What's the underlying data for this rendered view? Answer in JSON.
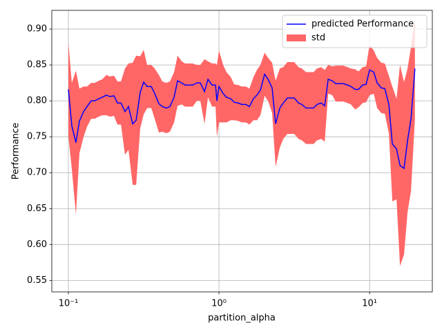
{
  "chart_data": {
    "type": "line_band",
    "xlabel": "partition_alpha",
    "ylabel": "Performance",
    "xscale": "log",
    "grid": true,
    "legend": "upper right",
    "x": [
      0.1,
      0.1054,
      0.1122,
      0.1184,
      0.1262,
      0.133,
      0.1416,
      0.1493,
      0.1592,
      0.1679,
      0.1787,
      0.1884,
      0.2009,
      0.2118,
      0.2234,
      0.2377,
      0.2506,
      0.2673,
      0.2818,
      0.2999,
      0.3162,
      0.3334,
      0.3551,
      0.3743,
      0.399,
      0.4207,
      0.4479,
      0.4722,
      0.5035,
      0.5309,
      0.5652,
      0.5957,
      0.6353,
      0.6699,
      0.7129,
      0.7516,
      0.8017,
      0.845,
      0.8995,
      0.9484,
      0.9688,
      1.0,
      1.066,
      1.122,
      1.197,
      1.262,
      1.343,
      1.416,
      1.51,
      1.592,
      1.694,
      1.787,
      1.884,
      2.009,
      2.118,
      2.254,
      2.377,
      2.535,
      2.673,
      2.844,
      2.999,
      3.162,
      3.371,
      3.548,
      3.784,
      3.99,
      4.246,
      4.477,
      4.775,
      5.035,
      5.309,
      5.649,
      5.957,
      6.353,
      6.699,
      7.129,
      7.516,
      8.017,
      8.45,
      8.995,
      9.484,
      10,
      10.66,
      11.22,
      11.97,
      12.62,
      13.43,
      14.16,
      15.1,
      15.92,
      16.94,
      17.87,
      18.84,
      20
    ],
    "series": [
      {
        "name": "predicted Performance",
        "color": "#0000ff",
        "values": [
          0.816,
          0.765,
          0.742,
          0.772,
          0.785,
          0.792,
          0.8,
          0.8,
          0.803,
          0.805,
          0.808,
          0.806,
          0.807,
          0.797,
          0.797,
          0.785,
          0.792,
          0.768,
          0.773,
          0.812,
          0.826,
          0.82,
          0.82,
          0.81,
          0.796,
          0.792,
          0.79,
          0.792,
          0.805,
          0.828,
          0.825,
          0.822,
          0.822,
          0.822,
          0.825,
          0.825,
          0.813,
          0.83,
          0.822,
          0.822,
          0.8,
          0.82,
          0.81,
          0.805,
          0.803,
          0.798,
          0.797,
          0.795,
          0.795,
          0.792,
          0.803,
          0.808,
          0.815,
          0.837,
          0.83,
          0.818,
          0.768,
          0.79,
          0.797,
          0.804,
          0.804,
          0.804,
          0.797,
          0.795,
          0.79,
          0.79,
          0.79,
          0.795,
          0.797,
          0.793,
          0.83,
          0.828,
          0.824,
          0.824,
          0.824,
          0.822,
          0.82,
          0.816,
          0.816,
          0.822,
          0.823,
          0.843,
          0.84,
          0.825,
          0.818,
          0.817,
          0.795,
          0.74,
          0.733,
          0.71,
          0.706,
          0.745,
          0.775,
          0.845
        ]
      },
      {
        "name": "std",
        "color": "#ff6666",
        "values": [
          0.065,
          0.06,
          0.1,
          0.045,
          0.035,
          0.028,
          0.025,
          0.025,
          0.025,
          0.025,
          0.028,
          0.028,
          0.028,
          0.03,
          0.03,
          0.06,
          0.06,
          0.085,
          0.09,
          0.05,
          0.045,
          0.03,
          0.03,
          0.035,
          0.04,
          0.035,
          0.035,
          0.035,
          0.035,
          0.035,
          0.03,
          0.03,
          0.03,
          0.03,
          0.025,
          0.025,
          0.045,
          0.025,
          0.03,
          0.03,
          0.05,
          0.05,
          0.04,
          0.035,
          0.03,
          0.025,
          0.025,
          0.025,
          0.025,
          0.025,
          0.03,
          0.035,
          0.035,
          0.03,
          0.03,
          0.035,
          0.06,
          0.055,
          0.05,
          0.05,
          0.05,
          0.05,
          0.05,
          0.05,
          0.05,
          0.05,
          0.05,
          0.05,
          0.05,
          0.05,
          0.02,
          0.02,
          0.025,
          0.025,
          0.025,
          0.025,
          0.025,
          0.028,
          0.025,
          0.025,
          0.025,
          0.035,
          0.03,
          0.035,
          0.035,
          0.035,
          0.04,
          0.08,
          0.07,
          0.14,
          0.12,
          0.1,
          0.1,
          0.07
        ]
      }
    ],
    "xlim": [
      0.0776,
      26.1
    ],
    "ylim": [
      0.534,
      0.926
    ],
    "xticks": [
      {
        "value": 0.1,
        "label": "10⁻¹"
      },
      {
        "value": 1,
        "label": "10⁰"
      },
      {
        "value": 10,
        "label": "10¹"
      }
    ],
    "yticks": [
      0.55,
      {
        "value": 0.6,
        "label": "0.60"
      },
      0.65,
      {
        "value": 0.7,
        "label": "0.70"
      },
      0.75,
      {
        "value": 0.8,
        "label": "0.80"
      },
      0.85,
      {
        "value": 0.9,
        "label": "0.90"
      }
    ]
  }
}
